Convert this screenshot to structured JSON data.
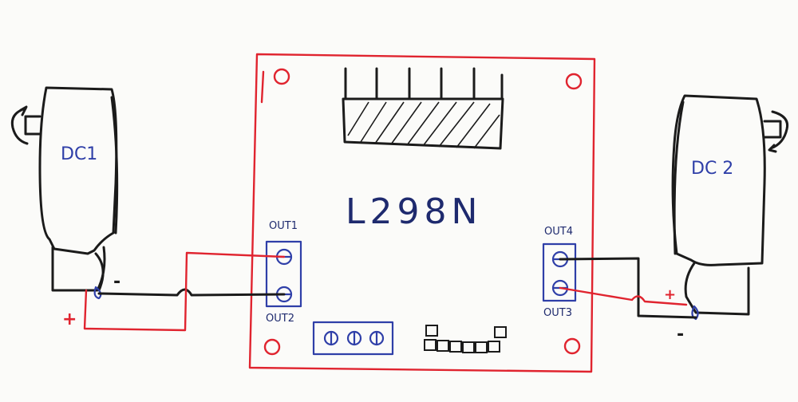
{
  "board": {
    "title": "L298N",
    "out1_label": "OUT1",
    "out2_label": "OUT2",
    "out3_label": "OUT3",
    "out4_label": "OUT4"
  },
  "motors": {
    "left_label": "DC1",
    "right_label": "DC 2"
  },
  "polarity": {
    "left_plus": "+",
    "left_minus": "-",
    "right_plus": "+",
    "right_minus": "-"
  },
  "colors": {
    "board_outline": "#e0242f",
    "terminal_blue": "#2f3fa8",
    "wire_black": "#1b1b1b",
    "wire_red": "#e0242f"
  }
}
